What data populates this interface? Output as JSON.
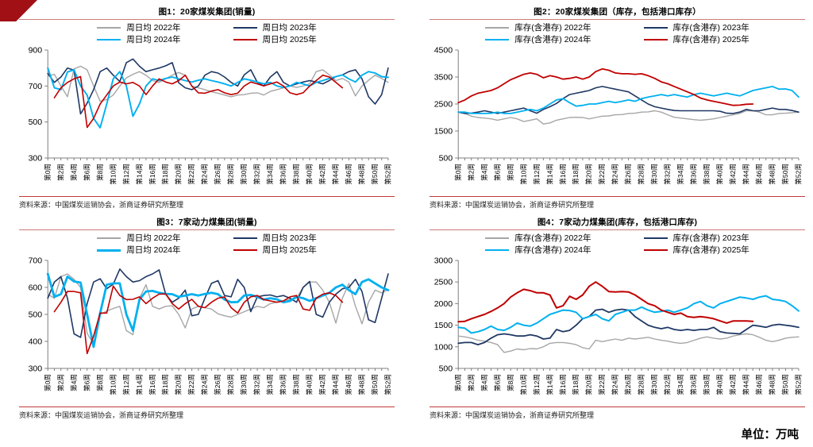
{
  "page": {
    "unit_label": "单位：万吨",
    "brand_color": "#A01015",
    "accent_red": "#C00000"
  },
  "x_axis": {
    "tick_labels": [
      "第0周",
      "第2周",
      "第4周",
      "第6周",
      "第8周",
      "第10周",
      "第12周",
      "第14周",
      "第16周",
      "第18周",
      "第20周",
      "第22周",
      "第24周",
      "第26周",
      "第28周",
      "第30周",
      "第32周",
      "第34周",
      "第36周",
      "第38周",
      "第40周",
      "第42周",
      "第44周",
      "第46周",
      "第48周",
      "第50周",
      "第52周"
    ]
  },
  "chart_data": [
    {
      "id": "fig1",
      "type": "line",
      "title": "图1：20家煤炭集团(销量)",
      "xlabel": "",
      "ylabel": "",
      "ylim": [
        300,
        900
      ],
      "ystep": 200,
      "weeks": 53,
      "grid": false,
      "legend_position": "top",
      "source": "资料来源：中国煤炭运销协会，浙商证券研究所整理",
      "series": [
        {
          "name": "周日均 2022年",
          "color": "#A6A6A6",
          "width": 1.4,
          "values": [
            755,
            765,
            700,
            640,
            795,
            810,
            790,
            700,
            615,
            625,
            650,
            700,
            745,
            765,
            780,
            760,
            730,
            720,
            740,
            760,
            775,
            760,
            700,
            690,
            680,
            668,
            660,
            650,
            640,
            650,
            652,
            660,
            662,
            650,
            670,
            680,
            690,
            700,
            692,
            700,
            712,
            780,
            790,
            762,
            730,
            742,
            722,
            645,
            700,
            732,
            760,
            742,
            720
          ]
        },
        {
          "name": "周日均 2023年",
          "color": "#1F3864",
          "width": 1.6,
          "values": [
            770,
            720,
            750,
            800,
            788,
            545,
            605,
            680,
            780,
            800,
            760,
            725,
            830,
            850,
            810,
            780,
            790,
            800,
            812,
            830,
            718,
            690,
            680,
            700,
            760,
            780,
            772,
            750,
            720,
            700,
            762,
            790,
            720,
            700,
            750,
            780,
            720,
            700,
            712,
            722,
            730,
            722,
            712,
            730,
            752,
            762,
            780,
            790,
            740,
            640,
            600,
            652,
            800
          ]
        },
        {
          "name": "周日均 2024年",
          "color": "#00B0F0",
          "width": 1.9,
          "values": [
            800,
            690,
            680,
            778,
            790,
            700,
            650,
            520,
            468,
            600,
            740,
            780,
            700,
            532,
            600,
            700,
            740,
            730,
            742,
            750,
            740,
            730,
            722,
            732,
            740,
            730,
            722,
            712,
            700,
            720,
            740,
            732,
            722,
            712,
            720,
            700,
            692,
            700,
            720,
            712,
            700,
            720,
            730,
            742,
            752,
            762,
            740,
            722,
            760,
            780,
            772,
            752,
            748
          ]
        },
        {
          "name": "周日均 2025年",
          "color": "#C00000",
          "width": 1.6,
          "values": [
            null,
            635,
            690,
            720,
            740,
            752,
            470,
            520,
            600,
            650,
            700,
            722,
            712,
            720,
            700,
            652,
            700,
            740,
            722,
            712,
            730,
            760,
            700,
            662,
            660,
            672,
            680,
            662,
            652,
            660,
            700,
            722,
            712,
            700,
            712,
            722,
            700,
            662,
            652,
            662,
            700,
            730,
            760,
            750,
            720,
            690
          ]
        }
      ]
    },
    {
      "id": "fig2",
      "type": "line",
      "title": "图2：20家煤炭集团（库存，包括港口库存）",
      "xlabel": "",
      "ylabel": "",
      "ylim": [
        500,
        4500
      ],
      "ystep": 1000,
      "weeks": 53,
      "grid": false,
      "legend_position": "top",
      "source": "资料来源：中国煤炭运销协会，浙商证券研究所整理",
      "series": [
        {
          "name": "库存(含港存) 2022年",
          "color": "#A6A6A6",
          "width": 1.4,
          "values": [
            2200,
            2150,
            2050,
            2000,
            1980,
            1950,
            1900,
            1950,
            2000,
            1950,
            1850,
            1900,
            1950,
            1760,
            1800,
            1900,
            1950,
            2000,
            2010,
            2000,
            1950,
            2000,
            2050,
            2060,
            2100,
            2110,
            2150,
            2160,
            2200,
            2210,
            2250,
            2200,
            2100,
            2010,
            1980,
            1950,
            1920,
            1900,
            1920,
            1950,
            2000,
            2050,
            2100,
            2150,
            2250,
            2250,
            2200,
            2100,
            2100,
            2150,
            2160,
            2180,
            2200
          ]
        },
        {
          "name": "库存(含港存) 2023年",
          "color": "#1F3864",
          "width": 1.6,
          "values": [
            2200,
            2150,
            2160,
            2200,
            2250,
            2200,
            2150,
            2200,
            2250,
            2300,
            2350,
            2250,
            2160,
            2300,
            2400,
            2520,
            2700,
            2850,
            2900,
            2950,
            3000,
            3100,
            3150,
            3100,
            3050,
            3000,
            2950,
            2800,
            2650,
            2500,
            2400,
            2350,
            2300,
            2260,
            2250,
            2250,
            2250,
            2250,
            2250,
            2250,
            2230,
            2160,
            2150,
            2200,
            2300,
            2250,
            2250,
            2300,
            2350,
            2300,
            2300,
            2260,
            2200
          ]
        },
        {
          "name": "库存(含港存) 2024年",
          "color": "#00B0F0",
          "width": 1.8,
          "values": [
            2200,
            2200,
            2150,
            2150,
            2150,
            2160,
            2200,
            2150,
            2150,
            2200,
            2250,
            2300,
            2250,
            2350,
            2500,
            2650,
            2700,
            2550,
            2420,
            2450,
            2500,
            2500,
            2550,
            2600,
            2550,
            2600,
            2650,
            2600,
            2700,
            2760,
            2800,
            2850,
            2800,
            2850,
            2800,
            2760,
            2850,
            2900,
            2850,
            2800,
            2850,
            2900,
            2850,
            2800,
            2900,
            3000,
            3050,
            3100,
            3150,
            3050,
            3060,
            3000,
            2760
          ]
        },
        {
          "name": "库存(含港存) 2025年",
          "color": "#C00000",
          "width": 1.8,
          "values": [
            2550,
            2650,
            2800,
            2900,
            2950,
            3000,
            3100,
            3250,
            3400,
            3500,
            3600,
            3650,
            3600,
            3470,
            3550,
            3500,
            3420,
            3450,
            3500,
            3420,
            3500,
            3700,
            3800,
            3750,
            3650,
            3620,
            3620,
            3600,
            3620,
            3550,
            3450,
            3320,
            3250,
            3150,
            3050,
            2950,
            2850,
            2720,
            2650,
            2600,
            2550,
            2500,
            2450,
            2460,
            2490,
            2500
          ]
        }
      ]
    },
    {
      "id": "fig3",
      "type": "line",
      "title": "图3：7家动力煤集团(销量)",
      "xlabel": "",
      "ylabel": "",
      "ylim": [
        300,
        700
      ],
      "ystep": 100,
      "weeks": 53,
      "grid": false,
      "legend_position": "top",
      "source": "资料来源：中国煤炭运销协会，浙商证券研究所整理",
      "series": [
        {
          "name": "周日均 2022年",
          "color": "#A6A6A6",
          "width": 1.4,
          "values": [
            575,
            560,
            640,
            650,
            630,
            600,
            430,
            390,
            500,
            512,
            522,
            530,
            440,
            425,
            560,
            610,
            530,
            520,
            530,
            532,
            500,
            450,
            520,
            530,
            525,
            520,
            502,
            495,
            490,
            500,
            510,
            520,
            530,
            525,
            540,
            545,
            550,
            556,
            560,
            600,
            620,
            620,
            590,
            545,
            468,
            560,
            615,
            530,
            465,
            545,
            590,
            580,
            592
          ]
        },
        {
          "name": "周日均 2023年",
          "color": "#1F3864",
          "width": 1.6,
          "values": [
            560,
            620,
            640,
            560,
            428,
            415,
            540,
            620,
            632,
            595,
            612,
            668,
            640,
            620,
            625,
            640,
            650,
            665,
            575,
            545,
            560,
            590,
            495,
            500,
            560,
            615,
            625,
            570,
            565,
            630,
            600,
            510,
            565,
            570,
            572,
            565,
            570,
            560,
            545,
            600,
            622,
            500,
            490,
            545,
            575,
            595,
            600,
            630,
            585,
            480,
            470,
            560,
            650
          ]
        },
        {
          "name": "周日均 2024年",
          "color": "#00B0F0",
          "width": 2.8,
          "values": [
            650,
            565,
            575,
            640,
            622,
            618,
            500,
            380,
            505,
            610,
            615,
            615,
            500,
            440,
            555,
            585,
            587,
            580,
            576,
            575,
            565,
            570,
            575,
            570,
            576,
            580,
            575,
            555,
            545,
            546,
            570,
            572,
            565,
            555,
            560,
            556,
            545,
            550,
            565,
            560,
            550,
            560,
            570,
            580,
            600,
            610,
            590,
            575,
            620,
            630,
            615,
            600,
            590
          ]
        },
        {
          "name": "周日均 2025年",
          "color": "#C00000",
          "width": 1.6,
          "values": [
            null,
            510,
            545,
            585,
            585,
            580,
            355,
            420,
            505,
            505,
            605,
            570,
            555,
            556,
            565,
            540,
            560,
            575,
            576,
            540,
            520,
            540,
            556,
            530,
            525,
            545,
            560,
            565,
            525,
            505,
            545,
            565,
            570,
            555,
            550,
            545,
            550,
            565,
            570,
            520,
            515,
            560,
            575,
            580,
            570,
            545
          ]
        }
      ]
    },
    {
      "id": "fig4",
      "type": "line",
      "title": "图4：7家动力煤集团(库存，包括港口库存)",
      "xlabel": "",
      "ylabel": "",
      "ylim": [
        500,
        3000
      ],
      "ystep": 500,
      "weeks": 53,
      "grid": false,
      "legend_position": "top",
      "source": "资料来源：中国煤炭运销协会，浙商证券研究所整理",
      "series": [
        {
          "name": "库存(含港存) 2022年",
          "color": "#A6A6A6",
          "width": 1.4,
          "values": [
            1250,
            1230,
            1200,
            1150,
            1130,
            1100,
            1050,
            870,
            900,
            950,
            930,
            960,
            950,
            1000,
            1080,
            1100,
            1100,
            1080,
            1050,
            980,
            950,
            1150,
            1120,
            1150,
            1180,
            1150,
            1200,
            1180,
            1200,
            1220,
            1180,
            1150,
            1130,
            1100,
            1080,
            1100,
            1150,
            1200,
            1230,
            1200,
            1180,
            1200,
            1250,
            1280,
            1300,
            1280,
            1220,
            1150,
            1120,
            1150,
            1200,
            1220,
            1230
          ]
        },
        {
          "name": "库存(含港存) 2023年",
          "color": "#1F3864",
          "width": 1.8,
          "values": [
            1080,
            1100,
            1100,
            1050,
            1100,
            1200,
            1280,
            1300,
            1280,
            1250,
            1250,
            1280,
            1250,
            1180,
            1200,
            1400,
            1350,
            1380,
            1500,
            1650,
            1700,
            1850,
            1870,
            1800,
            1850,
            1870,
            1850,
            1700,
            1600,
            1500,
            1450,
            1420,
            1450,
            1400,
            1380,
            1400,
            1380,
            1400,
            1400,
            1450,
            1350,
            1320,
            1310,
            1300,
            1400,
            1500,
            1480,
            1450,
            1500,
            1520,
            1500,
            1480,
            1450
          ]
        },
        {
          "name": "库存(含港存) 2024年",
          "color": "#00B0F0",
          "width": 2.0,
          "values": [
            1450,
            1430,
            1320,
            1350,
            1400,
            1480,
            1400,
            1380,
            1450,
            1550,
            1500,
            1480,
            1550,
            1650,
            1750,
            1800,
            1850,
            1840,
            1800,
            1650,
            1700,
            1750,
            1650,
            1600,
            1750,
            1800,
            1850,
            1850,
            1920,
            1850,
            1800,
            1820,
            1850,
            1800,
            1850,
            1900,
            2000,
            2050,
            1950,
            1900,
            2000,
            2050,
            2100,
            2150,
            2130,
            2100,
            2150,
            2180,
            2100,
            2080,
            2050,
            1950,
            1830
          ]
        },
        {
          "name": "库存(含港存) 2025年",
          "color": "#C00000",
          "width": 2.0,
          "values": [
            1580,
            1590,
            1650,
            1700,
            1750,
            1820,
            1900,
            2000,
            2150,
            2250,
            2330,
            2300,
            2250,
            2250,
            2200,
            1900,
            1950,
            2170,
            2100,
            2200,
            2400,
            2500,
            2400,
            2280,
            2270,
            2280,
            2270,
            2200,
            2100,
            2000,
            1950,
            1850,
            1800,
            1750,
            1780,
            1700,
            1680,
            1700,
            1680,
            1650,
            1600,
            1550,
            1600,
            1600,
            1600,
            1590
          ]
        }
      ]
    }
  ]
}
